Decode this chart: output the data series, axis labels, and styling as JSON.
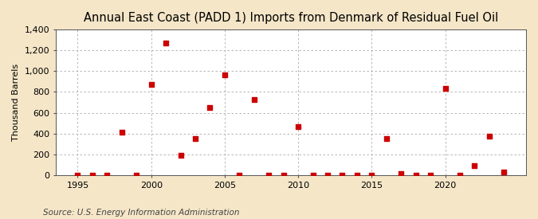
{
  "title": "Annual East Coast (PADD 1) Imports from Denmark of Residual Fuel Oil",
  "ylabel": "Thousand Barrels",
  "source": "Source: U.S. Energy Information Administration",
  "figure_bg": "#f5e6c8",
  "axes_bg": "#ffffff",
  "marker_color": "#cc0000",
  "x": [
    1995,
    1996,
    1997,
    1998,
    1999,
    2000,
    2001,
    2002,
    2003,
    2004,
    2005,
    2006,
    2007,
    2008,
    2009,
    2010,
    2011,
    2012,
    2013,
    2014,
    2015,
    2016,
    2017,
    2018,
    2019,
    2020,
    2021,
    2022,
    2023,
    2024
  ],
  "y": [
    0,
    0,
    0,
    415,
    0,
    870,
    1265,
    195,
    350,
    650,
    965,
    0,
    730,
    0,
    0,
    470,
    0,
    0,
    0,
    0,
    0,
    350,
    20,
    0,
    0,
    830,
    0,
    95,
    375,
    30
  ],
  "xlim": [
    1993.5,
    2025.5
  ],
  "ylim": [
    0,
    1400
  ],
  "yticks": [
    0,
    200,
    400,
    600,
    800,
    1000,
    1200,
    1400
  ],
  "ytick_labels": [
    "0",
    "200",
    "400",
    "600",
    "800",
    "1,000",
    "1,200",
    "1,400"
  ],
  "xticks": [
    1995,
    2000,
    2005,
    2010,
    2015,
    2020
  ],
  "grid_color": "#aaaaaa",
  "title_fontsize": 10.5,
  "label_fontsize": 8,
  "tick_fontsize": 8,
  "source_fontsize": 7.5
}
